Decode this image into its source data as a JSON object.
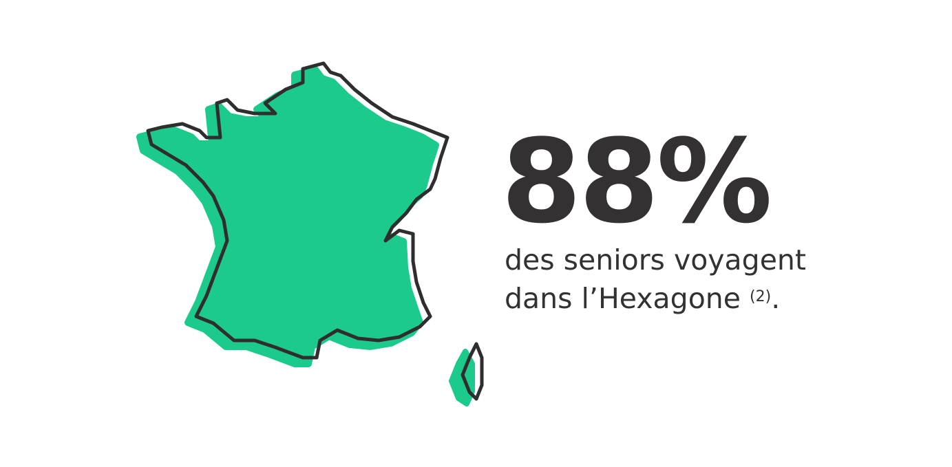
{
  "infographic": {
    "stat_value": "88%",
    "caption_line1": "des seniors voyagent",
    "caption_line2": "dans l’Hexagone ",
    "footnote_ref": "(2)",
    "caption_end": "."
  },
  "colors": {
    "map_fill": "#1ccb8b",
    "outline": "#2f2d2e",
    "text": "#333132"
  },
  "icons": {
    "map": "france-map-icon"
  }
}
